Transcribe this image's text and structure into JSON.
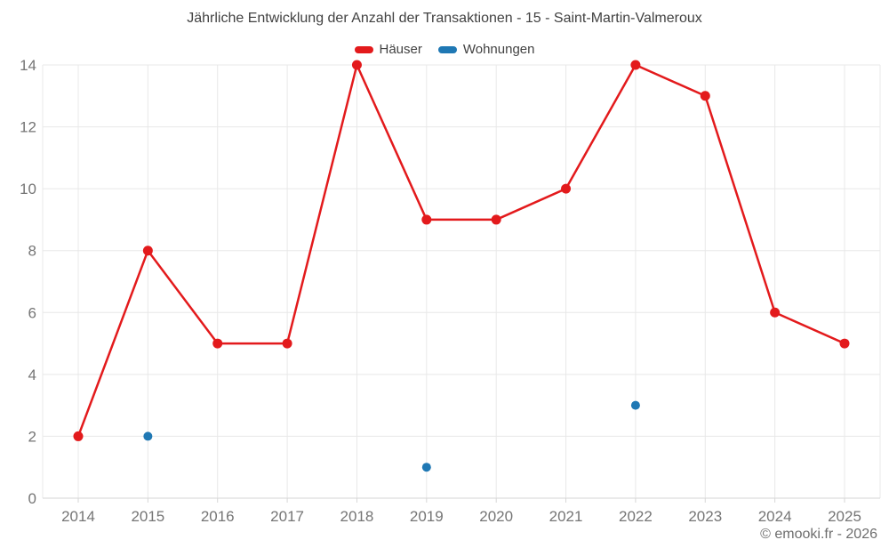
{
  "footer": "© emooki.fr - 2026",
  "chart_data": {
    "type": "line",
    "title": "Jährliche Entwicklung der Anzahl der Transaktionen - 15 - Saint-Martin-Valmeroux",
    "categories": [
      "2014",
      "2015",
      "2016",
      "2017",
      "2018",
      "2019",
      "2020",
      "2021",
      "2022",
      "2023",
      "2024",
      "2025"
    ],
    "series": [
      {
        "name": "Häuser",
        "color": "#e31a1c",
        "style": "line-with-points",
        "values": [
          2,
          8,
          5,
          5,
          14,
          9,
          9,
          10,
          14,
          13,
          6,
          5
        ]
      },
      {
        "name": "Wohnungen",
        "color": "#1f78b4",
        "style": "points-only",
        "values": [
          null,
          2,
          null,
          null,
          null,
          1,
          null,
          null,
          3,
          null,
          null,
          null
        ]
      }
    ],
    "xlabel": "",
    "ylabel": "",
    "ylim": [
      0,
      14
    ],
    "ytick_step": 2,
    "yticks": [
      0,
      2,
      4,
      6,
      8,
      10,
      12,
      14
    ],
    "grid": true,
    "legend_position": "top",
    "colors": {
      "tick_label": "#757575",
      "gridline": "#e8e8e8",
      "axis_line": "#d6d6d6",
      "title_text": "#424242",
      "footer_text": "#6e6e6e"
    }
  }
}
